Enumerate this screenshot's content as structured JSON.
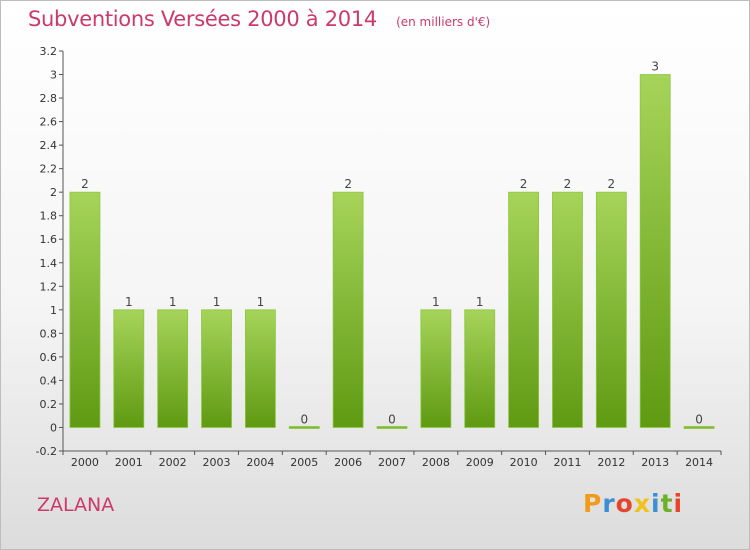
{
  "chart_data": {
    "type": "bar",
    "title": "Subventions Versées 2000 à 2014",
    "unit": "(en milliers d'€)",
    "categories": [
      "2000",
      "2001",
      "2002",
      "2003",
      "2004",
      "2005",
      "2006",
      "2007",
      "2008",
      "2009",
      "2010",
      "2011",
      "2012",
      "2013",
      "2014"
    ],
    "values": [
      2,
      1,
      1,
      1,
      1,
      0,
      2,
      0,
      1,
      1,
      2,
      2,
      2,
      3,
      0
    ],
    "value_labels": [
      "2",
      "1",
      "1",
      "1",
      "1",
      "0",
      "2",
      "0",
      "1",
      "1",
      "2",
      "2",
      "2",
      "3",
      "0"
    ],
    "ylim": [
      -0.2,
      3.2
    ],
    "yticks": [
      "-0.2",
      "0",
      "0.2",
      "0.4",
      "0.6",
      "0.8",
      "1",
      "1.2",
      "1.4",
      "1.6",
      "1.8",
      "2",
      "2.2",
      "2.4",
      "2.6",
      "2.8",
      "3",
      "3.2"
    ],
    "xlabel": "",
    "ylabel": "",
    "grid": false,
    "colors": {
      "bar_top": "#a6d45a",
      "bar_bottom": "#5f9a12",
      "title": "#cc3a6a",
      "axis": "#555555"
    }
  },
  "footer": {
    "town": "ZALANA",
    "logo_letters": [
      "P",
      "r",
      "o",
      "x",
      "i",
      "t",
      "i"
    ],
    "logo_colors": [
      "#f29a1a",
      "#3d8fd4",
      "#e5452b",
      "#f2c21a",
      "#3d8fd4",
      "#6fb02a",
      "#e5452b"
    ]
  }
}
